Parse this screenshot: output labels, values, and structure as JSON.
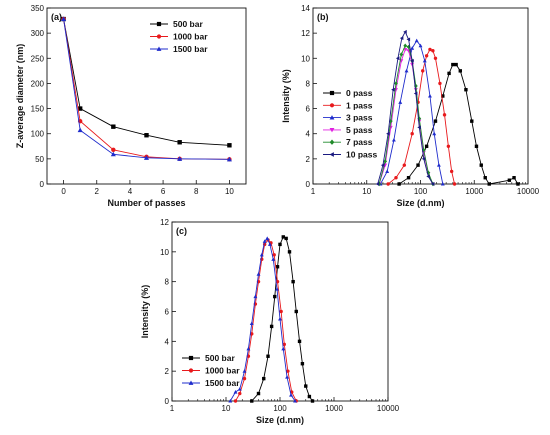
{
  "chart_data": [
    {
      "panel": "(a)",
      "type": "line",
      "xlabel": "Number of passes",
      "ylabel": "Z-average diameter (nm)",
      "xlim": [
        -1,
        11
      ],
      "ylim": [
        0,
        350
      ],
      "xticks": [
        0,
        2,
        4,
        6,
        8,
        10
      ],
      "yticks": [
        0,
        50,
        100,
        150,
        200,
        250,
        300,
        350
      ],
      "legend_position": "top-right",
      "series": [
        {
          "name": "500 bar",
          "color": "#000000",
          "marker": "square",
          "x": [
            0,
            1,
            3,
            5,
            7,
            10
          ],
          "y": [
            328,
            150,
            114,
            97,
            83,
            77
          ]
        },
        {
          "name": "1000 bar",
          "color": "#e8191c",
          "marker": "circle",
          "x": [
            0,
            1,
            3,
            5,
            7,
            10
          ],
          "y": [
            328,
            125,
            68,
            54,
            50,
            49
          ]
        },
        {
          "name": "1500 bar",
          "color": "#1f2ccc",
          "marker": "triangle",
          "x": [
            0,
            1,
            3,
            5,
            7,
            10
          ],
          "y": [
            328,
            107,
            59,
            52,
            50,
            49
          ]
        }
      ]
    },
    {
      "panel": "(b)",
      "type": "line",
      "xscale": "log",
      "xlabel": "Size (d.nm)",
      "ylabel": "Intensity (%)",
      "xlim": [
        1,
        10000
      ],
      "ylim": [
        0,
        14
      ],
      "xticks": [
        1,
        10,
        100,
        1000,
        10000
      ],
      "xtick_labels": [
        "1",
        "10",
        "100",
        "1000",
        "10000"
      ],
      "yticks": [
        0,
        2,
        4,
        6,
        8,
        10,
        12,
        14
      ],
      "legend_position": "bottom-left",
      "series": [
        {
          "name": "0 pass",
          "color": "#000000",
          "marker": "square",
          "x": [
            40,
            60,
            90,
            130,
            190,
            260,
            340,
            400,
            460,
            550,
            700,
            900,
            1100,
            1350,
            1600,
            1900,
            4500,
            5500,
            6500
          ],
          "y": [
            0,
            0.5,
            1.5,
            3,
            5,
            7,
            8.8,
            9.5,
            9.5,
            9,
            7.5,
            5,
            3,
            1.5,
            0.5,
            0,
            0.3,
            0.5,
            0
          ]
        },
        {
          "name": "1 pass",
          "color": "#e8191c",
          "marker": "circle",
          "x": [
            25,
            35,
            50,
            70,
            90,
            110,
            130,
            150,
            170,
            190,
            230,
            280,
            330,
            380,
            430
          ],
          "y": [
            0,
            0.5,
            1.5,
            4,
            6.5,
            9,
            10.2,
            10.7,
            10.6,
            10,
            8,
            5.5,
            3,
            1,
            0
          ]
        },
        {
          "name": "3 pass",
          "color": "#1f2ccc",
          "marker": "triangle",
          "x": [
            18,
            24,
            32,
            42,
            55,
            70,
            85,
            100,
            120,
            150,
            180,
            220,
            260
          ],
          "y": [
            0,
            1,
            3.5,
            6.5,
            9,
            10.8,
            11.4,
            11,
            9.8,
            7,
            4,
            1.5,
            0
          ]
        },
        {
          "name": "5 pass",
          "color": "#e020e0",
          "marker": "triangle-down",
          "x": [
            17,
            22,
            28,
            35,
            44,
            52,
            60,
            70,
            82,
            95,
            115,
            140,
            170
          ],
          "y": [
            0,
            1.5,
            4.5,
            7.5,
            9.8,
            10.7,
            10.6,
            9.5,
            7.5,
            5,
            2.5,
            0.8,
            0
          ]
        },
        {
          "name": "7 pass",
          "color": "#1f8a2a",
          "marker": "diamond",
          "x": [
            17,
            22,
            28,
            35,
            44,
            52,
            60,
            70,
            82,
            95,
            115,
            140,
            170
          ],
          "y": [
            0,
            1.8,
            5,
            8,
            10.3,
            11,
            10.9,
            9.8,
            7.8,
            5.2,
            2.7,
            0.9,
            0
          ]
        },
        {
          "name": "10 pass",
          "color": "#1a1a80",
          "marker": "triangle-left",
          "x": [
            16,
            20,
            25,
            31,
            38,
            45,
            52,
            60,
            70,
            82,
            95,
            115,
            140,
            170
          ],
          "y": [
            0,
            1.5,
            4,
            7.5,
            10,
            11.6,
            12.1,
            11.5,
            9.8,
            7.2,
            4.5,
            2,
            0.6,
            0
          ]
        }
      ]
    },
    {
      "panel": "(c)",
      "type": "line",
      "xscale": "log",
      "xlabel": "Size (d.nm)",
      "ylabel": "Intensity (%)",
      "xlim": [
        1,
        10000
      ],
      "ylim": [
        0,
        12
      ],
      "xticks": [
        1,
        10,
        100,
        1000,
        10000
      ],
      "xtick_labels": [
        "1",
        "10",
        "100",
        "1000",
        "10000"
      ],
      "yticks": [
        0,
        2,
        4,
        6,
        8,
        10,
        12
      ],
      "legend_position": "bottom-left",
      "series": [
        {
          "name": "500 bar",
          "color": "#000000",
          "marker": "square",
          "x": [
            30,
            40,
            50,
            60,
            70,
            80,
            90,
            100,
            115,
            130,
            150,
            175,
            200,
            230,
            260,
            300,
            350,
            400
          ],
          "y": [
            0,
            0.5,
            1.5,
            3,
            5,
            7,
            9,
            10.5,
            11,
            10.9,
            10,
            8,
            6,
            4,
            2.5,
            1,
            0.3,
            0
          ]
        },
        {
          "name": "1000 bar",
          "color": "#e8191c",
          "marker": "circle",
          "x": [
            15,
            18,
            22,
            26,
            30,
            35,
            40,
            46,
            52,
            60,
            68,
            78,
            90,
            105,
            120,
            140,
            165,
            200
          ],
          "y": [
            0,
            0.5,
            1.5,
            3,
            4.5,
            6.5,
            8,
            9.5,
            10.5,
            10.8,
            10.6,
            9.8,
            8,
            6,
            3.8,
            2,
            0.6,
            0
          ]
        },
        {
          "name": "1500 bar",
          "color": "#1f2ccc",
          "marker": "triangle",
          "x": [
            12,
            15,
            18,
            22,
            26,
            30,
            35,
            40,
            46,
            52,
            58,
            65,
            75,
            88,
            100,
            115,
            135,
            160,
            190
          ],
          "y": [
            0,
            0.6,
            0.8,
            2,
            3.5,
            5.2,
            7,
            8.5,
            9.8,
            10.7,
            10.9,
            10.5,
            9.5,
            7.5,
            5.5,
            3.5,
            1.6,
            0.4,
            0
          ]
        }
      ]
    }
  ]
}
